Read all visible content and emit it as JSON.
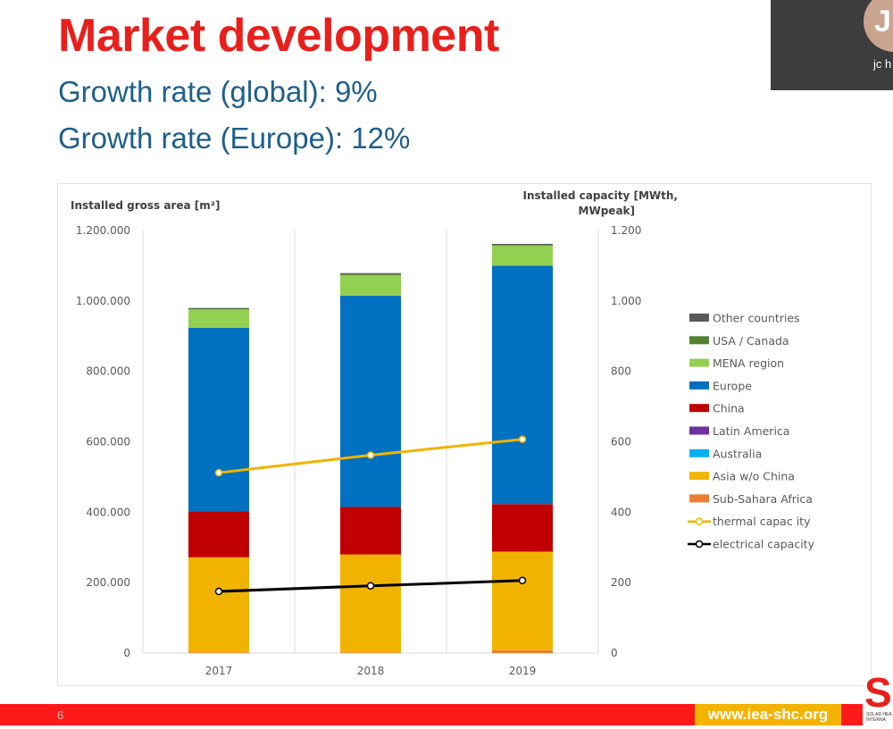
{
  "slide": {
    "title": "Market development",
    "subtitle_1": "Growth rate (global): 9%",
    "subtitle_2": "Growth rate (Europe): 12%",
    "title_color": "#e8201c",
    "subtitle_color": "#1f5f8b"
  },
  "video": {
    "initial": "J",
    "name": "jc h"
  },
  "footer": {
    "page_number": "6",
    "url": "www.iea-shc.org",
    "logo_letter": "S",
    "logo_line_1": "SOLAR HEA",
    "logo_line_2": "INTERNA"
  },
  "chart_data": {
    "type": "bar",
    "stacked": true,
    "categories": [
      "2017",
      "2018",
      "2019"
    ],
    "ylabel_left": "Installed gross area [m²]",
    "ylabel_right_line1": "Installed capacity [MWth,",
    "ylabel_right_line2": "MWpeak]",
    "ylim_left": [
      0,
      1200000
    ],
    "ylim_right": [
      0,
      1200
    ],
    "left_ticks": [
      {
        "value": 0,
        "label": "0"
      },
      {
        "value": 200000,
        "label": "200.000"
      },
      {
        "value": 400000,
        "label": "400.000"
      },
      {
        "value": 600000,
        "label": "600.000"
      },
      {
        "value": 800000,
        "label": "800.000"
      },
      {
        "value": 1000000,
        "label": "1.000.000"
      },
      {
        "value": 1200000,
        "label": "1.200.000"
      }
    ],
    "right_ticks": [
      {
        "value": 0,
        "label": "0"
      },
      {
        "value": 200,
        "label": "200"
      },
      {
        "value": 400,
        "label": "400"
      },
      {
        "value": 600,
        "label": "600"
      },
      {
        "value": 800,
        "label": "800"
      },
      {
        "value": 1000,
        "label": "1.000"
      },
      {
        "value": 1200,
        "label": "1.200"
      }
    ],
    "grid": "vertical",
    "legend_position": "right",
    "series": [
      {
        "name": "Sub-Sahara Africa",
        "color": "#ed7d31",
        "values": [
          2000,
          2000,
          8000
        ]
      },
      {
        "name": "Asia w/o China",
        "color": "#f0b400",
        "values": [
          270000,
          278000,
          280000
        ]
      },
      {
        "name": "Australia",
        "color": "#00b0f0",
        "values": [
          0,
          0,
          0
        ]
      },
      {
        "name": "Latin America",
        "color": "#7030a0",
        "values": [
          0,
          0,
          0
        ]
      },
      {
        "name": "China",
        "color": "#c00000",
        "values": [
          130000,
          135000,
          135000
        ]
      },
      {
        "name": "Europe",
        "color": "#0070c0",
        "values": [
          522000,
          600000,
          677000
        ]
      },
      {
        "name": "MENA region",
        "color": "#92d050",
        "values": [
          52000,
          58000,
          57000
        ]
      },
      {
        "name": "USA / Canada",
        "color": "#548235",
        "values": [
          2000,
          3000,
          2000
        ]
      },
      {
        "name": "Other countries",
        "color": "#595959",
        "values": [
          2000,
          3000,
          3000
        ]
      }
    ],
    "lines": [
      {
        "name": "thermal capac ity",
        "color": "#f0b400",
        "axis": "right",
        "values": [
          512,
          562,
          607
        ]
      },
      {
        "name": "electrical capacity",
        "color": "#000000",
        "axis": "right",
        "values": [
          175,
          191,
          206
        ]
      }
    ],
    "legend_order": [
      "Other countries",
      "USA / Canada",
      "MENA region",
      "Europe",
      "China",
      "Latin America",
      "Australia",
      "Asia w/o China",
      "Sub-Sahara Africa",
      "thermal capac ity",
      "electrical capacity"
    ]
  }
}
